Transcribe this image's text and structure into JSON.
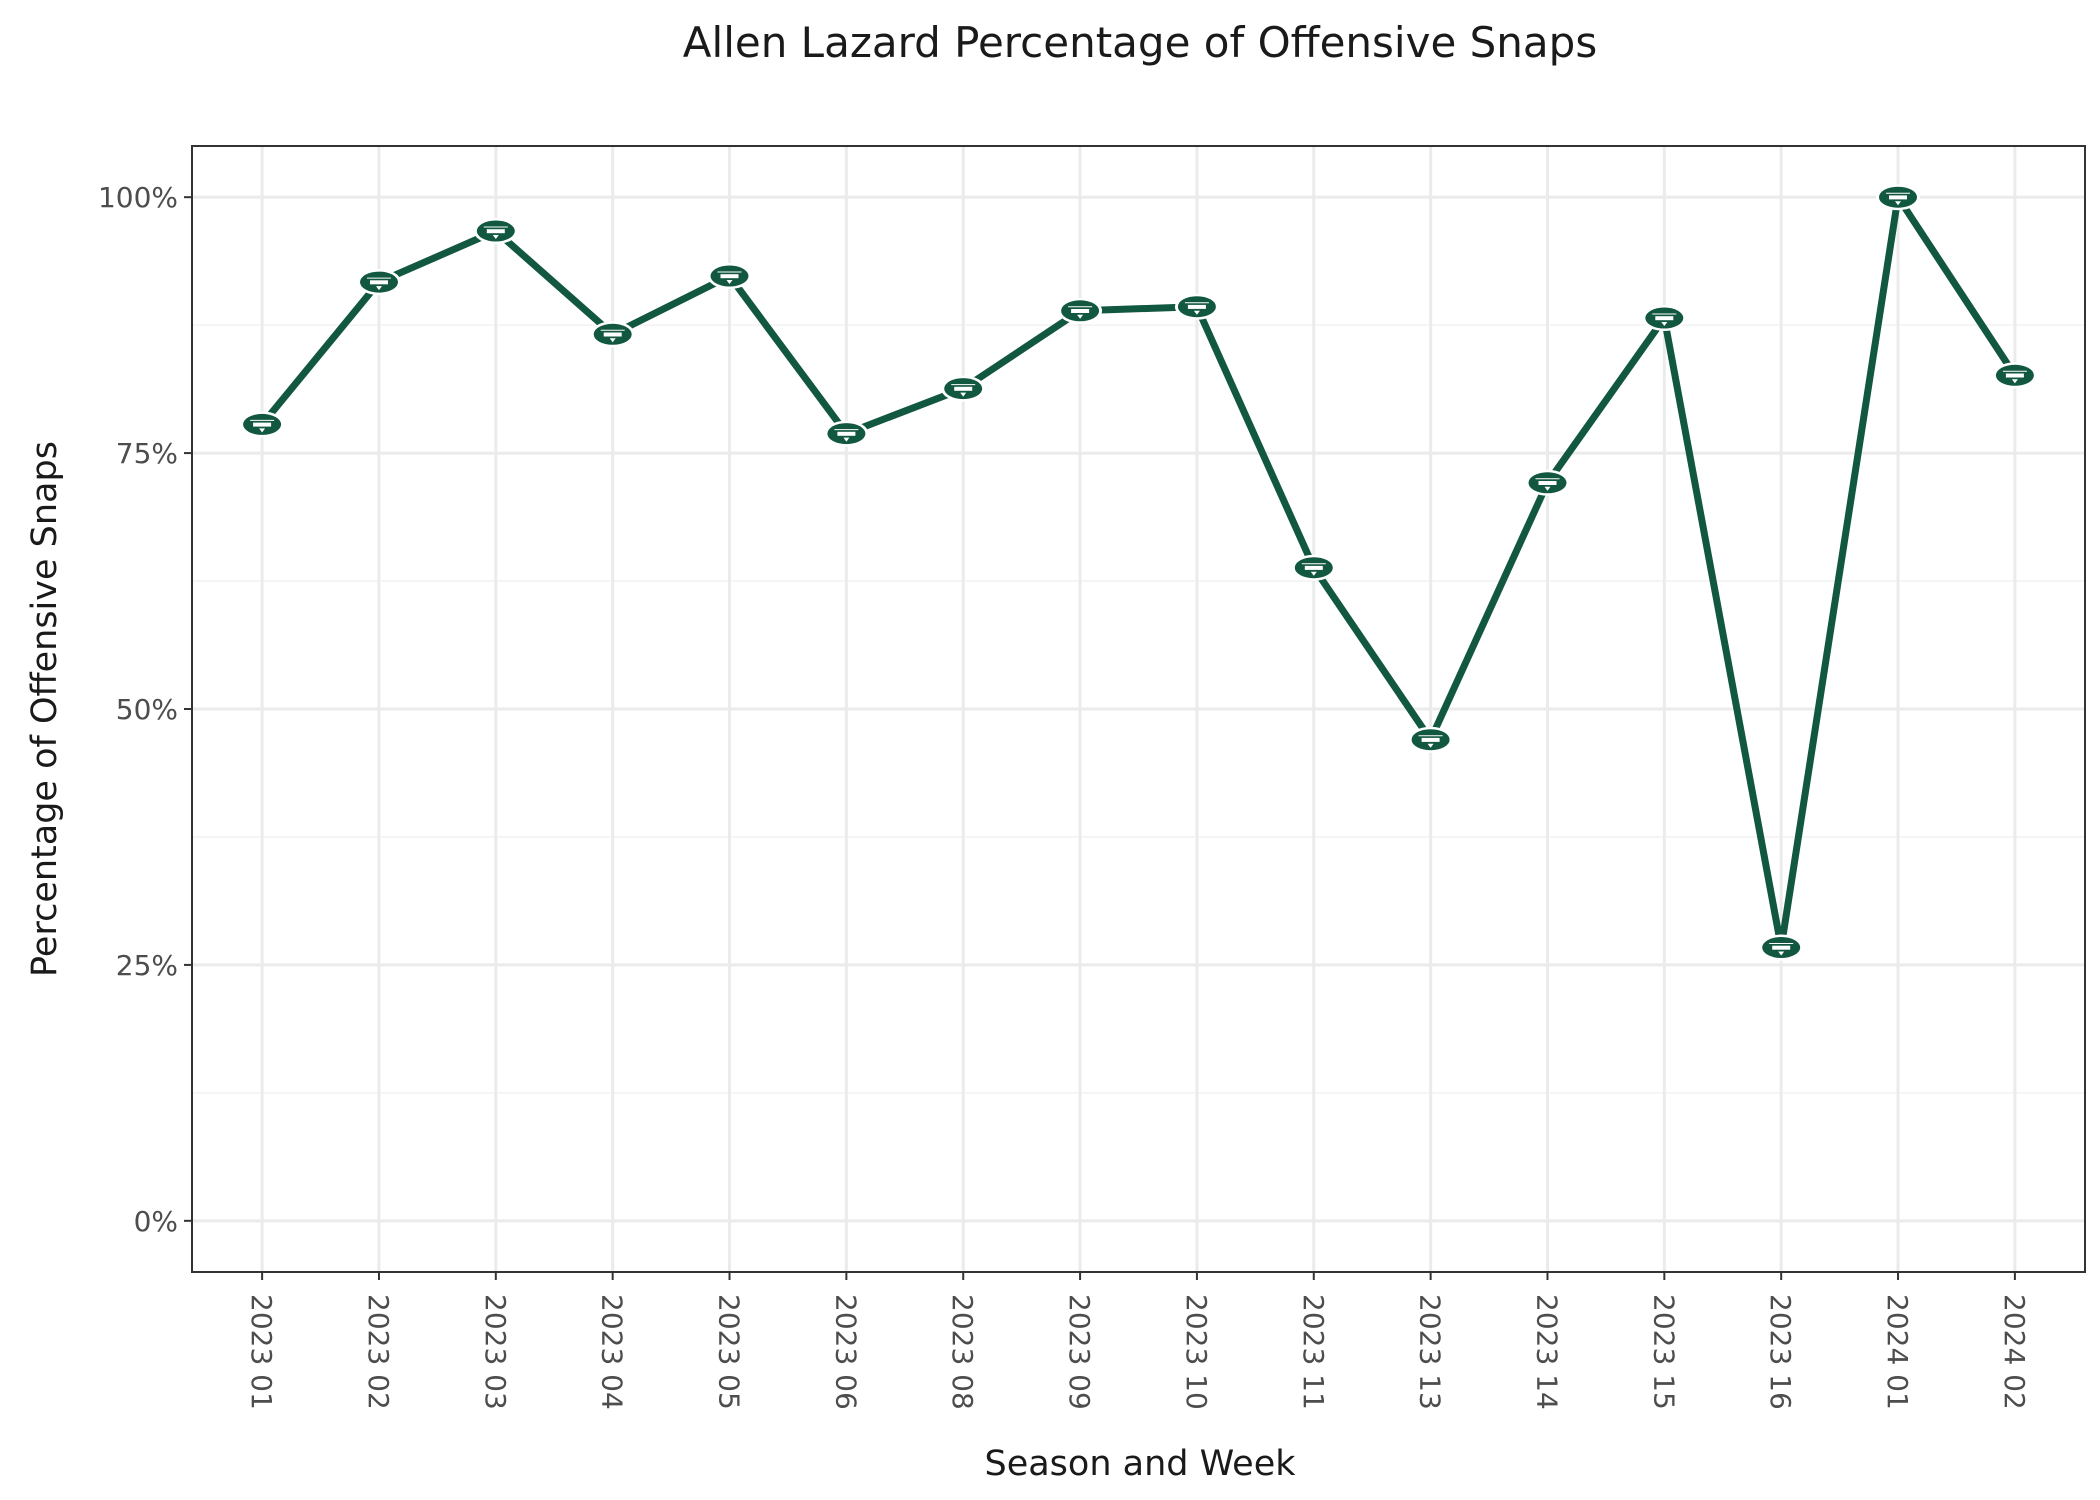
{
  "chart_data": {
    "type": "line",
    "title": "Allen Lazard Percentage of Offensive Snaps",
    "xlabel": "Season and Week",
    "ylabel": "Percentage of Offensive Snaps",
    "categories": [
      "2023 01",
      "2023 02",
      "2023 03",
      "2023 04",
      "2023 05",
      "2023 06",
      "2023 08",
      "2023 09",
      "2023 10",
      "2023 11",
      "2023 13",
      "2023 14",
      "2023 15",
      "2023 16",
      "2024 01",
      "2024 02"
    ],
    "values": [
      0.778,
      0.917,
      0.967,
      0.866,
      0.923,
      0.769,
      0.813,
      0.889,
      0.893,
      0.638,
      0.47,
      0.721,
      0.882,
      0.267,
      1.0,
      0.826
    ],
    "ylim": [
      -0.05,
      1.05
    ],
    "yticks": [
      0,
      0.25,
      0.5,
      0.75,
      1.0
    ],
    "ytick_labels": [
      "0%",
      "25%",
      "50%",
      "75%",
      "100%"
    ],
    "grid": true,
    "line_color": "#125740",
    "marker": "jets-logo-icon"
  }
}
